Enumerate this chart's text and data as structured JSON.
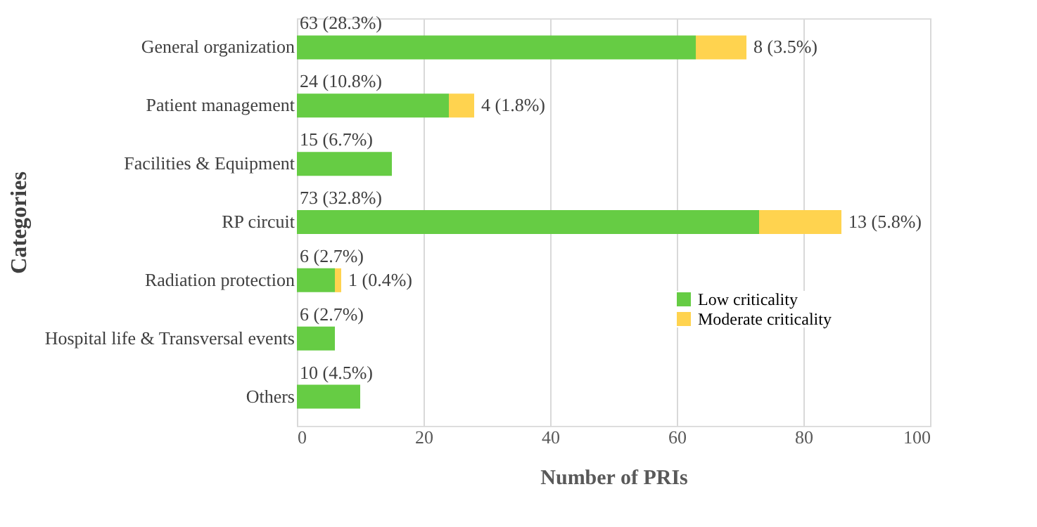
{
  "chart_data": {
    "type": "bar",
    "orientation": "horizontal",
    "stacked": true,
    "xlabel": "Number of PRIs",
    "ylabel": "Categories",
    "categories": [
      "General organization",
      "Patient management",
      "Facilities & Equipment",
      "RP circuit",
      "Radiation protection",
      "Hospital life & Transversal events",
      "Others"
    ],
    "series": [
      {
        "name": "Low criticality",
        "color": "#66cc44",
        "values": [
          63,
          24,
          15,
          73,
          6,
          6,
          10
        ],
        "value_labels": [
          "63 (28.3%)",
          "24 (10.8%)",
          "15 (6.7%)",
          "73 (32.8%)",
          "6 (2.7%)",
          "6 (2.7%)",
          "10 (4.5%)"
        ]
      },
      {
        "name": "Moderate criticality",
        "color": "#ffd34f",
        "values": [
          8,
          4,
          null,
          13,
          1,
          null,
          null
        ],
        "value_labels": [
          "8 (3.5%)",
          "4 (1.8%)",
          null,
          "13 (5.8%)",
          "1 (0.4%)",
          null,
          null
        ]
      }
    ],
    "xlim": [
      0,
      100
    ],
    "xticks": [
      0,
      20,
      40,
      60,
      80,
      100
    ],
    "grid": "x",
    "legend": "bottom right"
  }
}
